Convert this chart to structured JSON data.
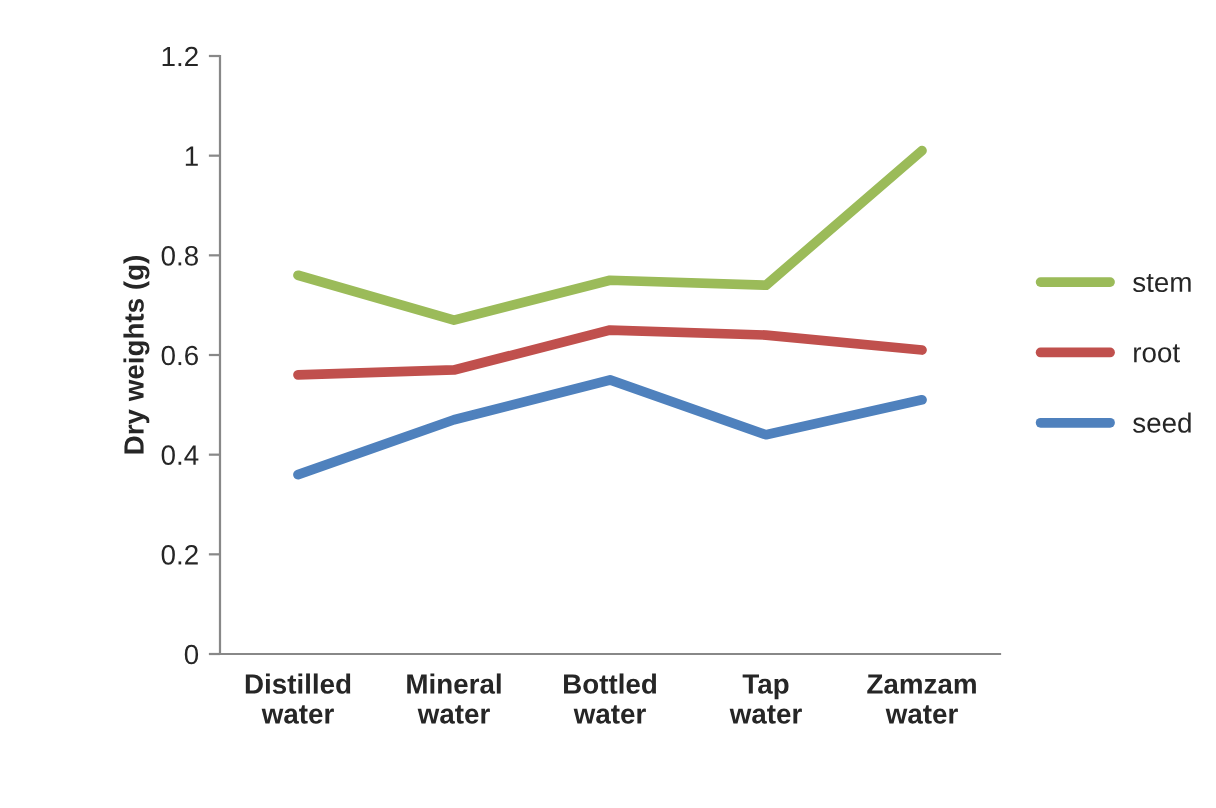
{
  "chart_data": {
    "type": "line",
    "ylabel": "Dry weights (g)",
    "categories": [
      "Distilled\nwater",
      "Mineral\nwater",
      "Bottled\nwater",
      "Tap\nwater",
      "Zamzam\nwater"
    ],
    "series": [
      {
        "name": "stem",
        "color": "#9bbb59",
        "values": [
          0.76,
          0.67,
          0.75,
          0.74,
          1.01
        ]
      },
      {
        "name": "root",
        "color": "#c0504d",
        "values": [
          0.56,
          0.57,
          0.65,
          0.64,
          0.61
        ]
      },
      {
        "name": "seed",
        "color": "#4f81bd",
        "values": [
          0.36,
          0.47,
          0.55,
          0.44,
          0.51
        ]
      }
    ],
    "ylim": [
      0,
      1.2
    ],
    "yticks": [
      0,
      0.2,
      0.4,
      0.6,
      0.8,
      1,
      1.2
    ],
    "grid": false,
    "legend": "right",
    "marker": "none",
    "line_style": "solid"
  }
}
